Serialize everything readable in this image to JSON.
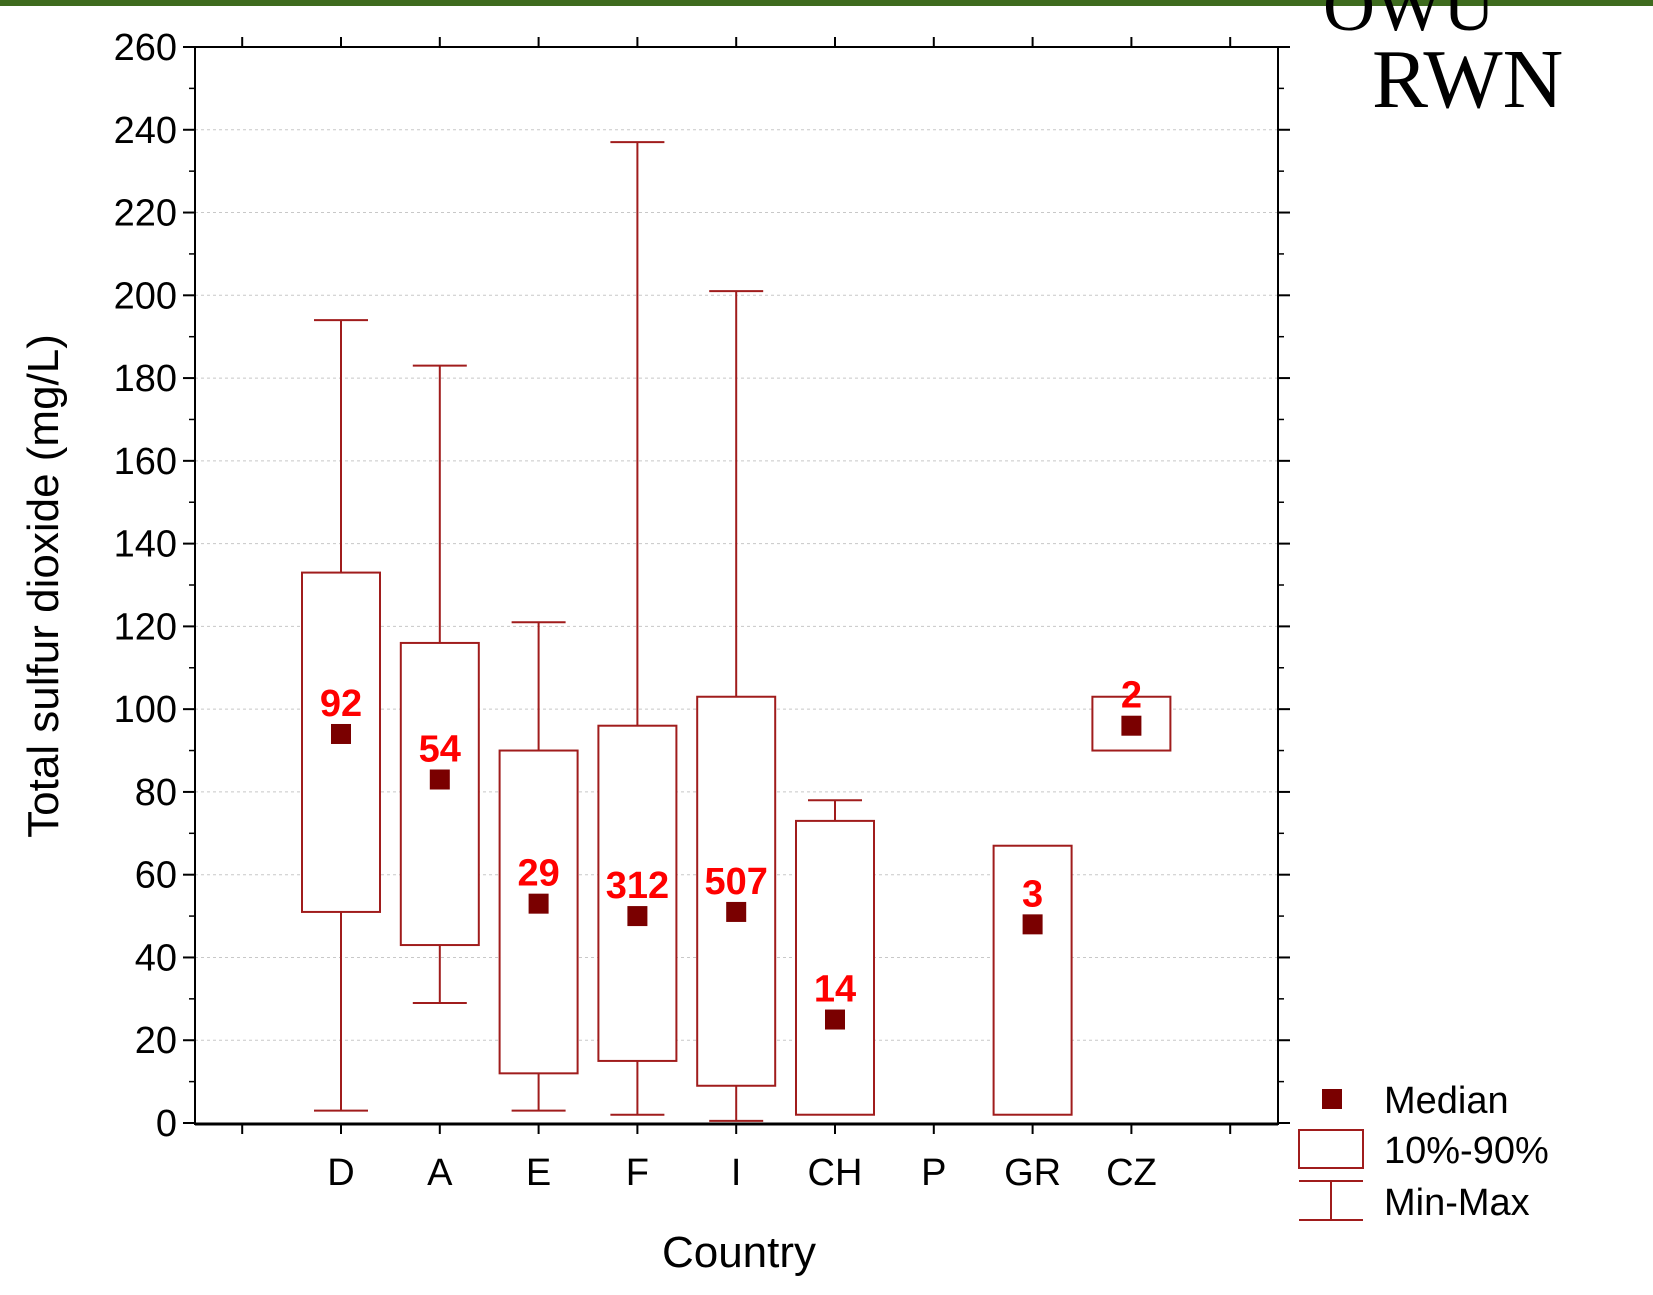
{
  "logo": {
    "text_top": "OWU",
    "text_bottom": "RWN"
  },
  "chart_data": {
    "type": "box",
    "xlabel": "Country",
    "ylabel": "Total sulfur dioxide (mg/L)",
    "ylim": [
      0,
      260
    ],
    "yticks": [
      0,
      20,
      40,
      60,
      80,
      100,
      120,
      140,
      160,
      180,
      200,
      220,
      240,
      260
    ],
    "grid": "horizontal",
    "legend_position": "bottom-right",
    "legend": [
      {
        "key": "median",
        "label": "Median"
      },
      {
        "key": "box",
        "label": "10%-90%"
      },
      {
        "key": "whisker",
        "label": "Min-Max"
      }
    ],
    "colors": {
      "box": "#a01c1c",
      "median": "#7a0000",
      "count": "#ff0000",
      "grid": "#c8c8c8"
    },
    "categories": [
      "D",
      "A",
      "E",
      "F",
      "I",
      "CH",
      "P",
      "GR",
      "CZ"
    ],
    "boxes": [
      {
        "category": "D",
        "min": 3,
        "p10": 51,
        "median": 94,
        "p90": 133,
        "max": 194,
        "count": "92"
      },
      {
        "category": "A",
        "min": 29,
        "p10": 43,
        "median": 83,
        "p90": 116,
        "max": 183,
        "count": "54"
      },
      {
        "category": "E",
        "min": 3,
        "p10": 12,
        "median": 53,
        "p90": 90,
        "max": 121,
        "count": "29"
      },
      {
        "category": "F",
        "min": 2,
        "p10": 15,
        "median": 50,
        "p90": 96,
        "max": 237,
        "count": "312"
      },
      {
        "category": "I",
        "min": 0.5,
        "p10": 9,
        "median": 51,
        "p90": 103,
        "max": 201,
        "count": "507"
      },
      {
        "category": "CH",
        "min": 2,
        "p10": 2,
        "median": 25,
        "p90": 73,
        "max": 78,
        "count": "14"
      },
      {
        "category": "GR",
        "min": 2,
        "p10": 2,
        "median": 48,
        "p90": 67,
        "max": 67,
        "count": "3"
      },
      {
        "category": "CZ",
        "min": 90,
        "p10": 90,
        "median": 96,
        "p90": 103,
        "max": 103,
        "count": "2"
      }
    ]
  }
}
